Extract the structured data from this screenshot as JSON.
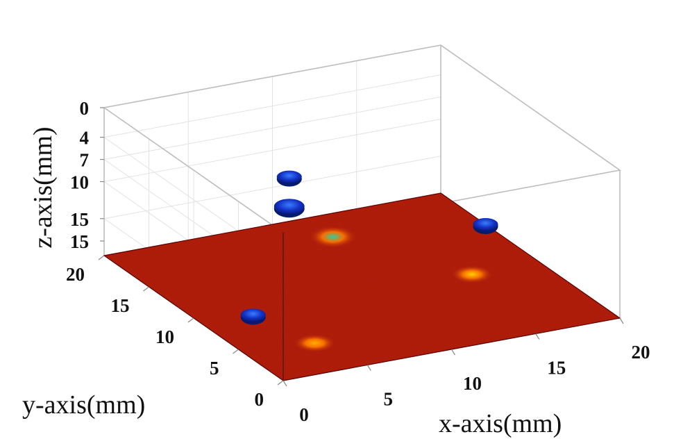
{
  "chart_data": {
    "type": "3d-surface",
    "xlabel": "x-axis(mm)",
    "ylabel": "y-axis(mm)",
    "zlabel": "z-axis(mm)",
    "x_ticks": [
      "0",
      "5",
      "10",
      "15",
      "20"
    ],
    "y_ticks": [
      "0",
      "5",
      "10",
      "15",
      "20"
    ],
    "z_ticks": [
      "0",
      "4",
      "7",
      "10",
      "15",
      "15"
    ],
    "xlim": [
      0,
      20
    ],
    "ylim": [
      0,
      20
    ],
    "zlim": [
      0,
      20
    ],
    "z_axis_reversed": true,
    "grid": true,
    "colormap": "jet",
    "floor_color": "#b01a0c",
    "hot_spots": [
      {
        "x": 4,
        "y": 4,
        "intensity": "low",
        "color": "#ffb000"
      },
      {
        "x": 16,
        "y": 9,
        "intensity": "medium",
        "color": "#ffd400"
      },
      {
        "x": 12,
        "y": 17,
        "intensity": "high",
        "color": "#2ad0a0"
      }
    ],
    "blobs": [
      {
        "x": 3,
        "y": 9,
        "z": 20,
        "color": "#1030c0"
      },
      {
        "x": 20,
        "y": 15,
        "z": 20,
        "color": "#1030c0"
      },
      {
        "x": 11,
        "y": 20,
        "z": 18,
        "color": "#1040c8"
      },
      {
        "x": 11,
        "y": 20,
        "z": 14,
        "color": "#1040c8"
      }
    ]
  }
}
